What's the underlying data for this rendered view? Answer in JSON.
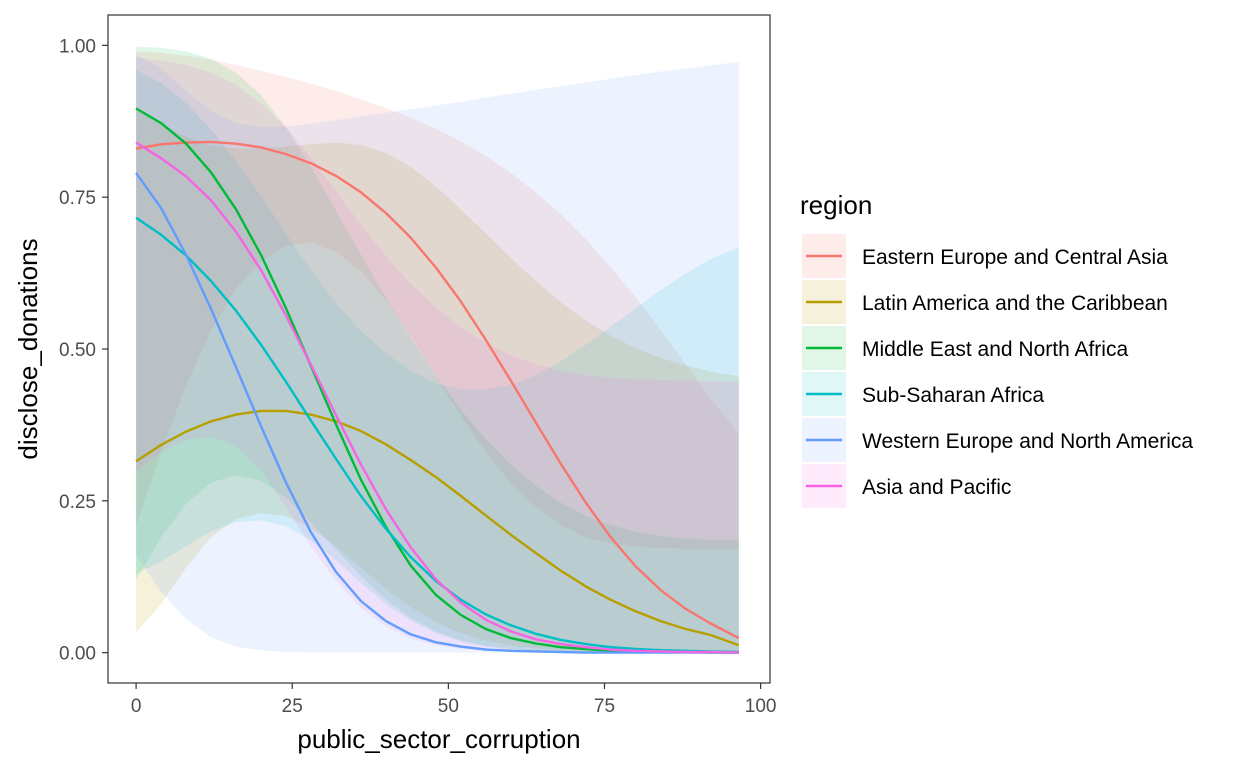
{
  "chart_data": {
    "type": "line",
    "title": "",
    "xlabel": "public_sector_corruption",
    "ylabel": "disclose_donations",
    "xlim": [
      -4.5,
      101.5
    ],
    "ylim": [
      -0.05,
      1.05
    ],
    "x_ticks": [
      0,
      25,
      50,
      75,
      100
    ],
    "x_tick_labels": [
      "0",
      "25",
      "50",
      "75",
      "100"
    ],
    "y_ticks": [
      0,
      0.25,
      0.5,
      0.75,
      1
    ],
    "y_tick_labels": [
      "0.00",
      "0.25",
      "0.50",
      "0.75",
      "1.00"
    ],
    "grid": false,
    "legend": {
      "title": "region",
      "position": "right"
    },
    "x": [
      0,
      4,
      8,
      12,
      16,
      20,
      24,
      28,
      32,
      36,
      40,
      44,
      48,
      52,
      56,
      60,
      64,
      68,
      72,
      76,
      80,
      84,
      88,
      92,
      96.5
    ],
    "series": [
      {
        "name": "Eastern Europe and Central Asia",
        "color": "#F8766D",
        "fill_opacity": 0.14,
        "values": [
          0.83,
          0.837,
          0.84,
          0.841,
          0.838,
          0.832,
          0.821,
          0.806,
          0.785,
          0.758,
          0.724,
          0.683,
          0.634,
          0.578,
          0.515,
          0.448,
          0.379,
          0.311,
          0.247,
          0.19,
          0.142,
          0.103,
          0.072,
          0.048,
          0.024
        ],
        "upper": [
          0.99,
          0.988,
          0.983,
          0.976,
          0.968,
          0.958,
          0.948,
          0.937,
          0.925,
          0.911,
          0.897,
          0.881,
          0.863,
          0.842,
          0.818,
          0.79,
          0.758,
          0.722,
          0.681,
          0.635,
          0.585,
          0.531,
          0.475,
          0.418,
          0.36
        ],
        "lower": [
          0.21,
          0.33,
          0.44,
          0.53,
          0.6,
          0.645,
          0.67,
          0.675,
          0.66,
          0.628,
          0.58,
          0.521,
          0.455,
          0.39,
          0.33,
          0.28,
          0.24,
          0.21,
          0.19,
          0.18,
          0.175,
          0.172,
          0.171,
          0.17,
          0.17
        ]
      },
      {
        "name": "Latin America and the Caribbean",
        "color": "#B79F00",
        "fill_opacity": 0.14,
        "values": [
          0.315,
          0.342,
          0.364,
          0.381,
          0.392,
          0.398,
          0.398,
          0.392,
          0.381,
          0.365,
          0.343,
          0.317,
          0.289,
          0.258,
          0.226,
          0.194,
          0.164,
          0.135,
          0.109,
          0.087,
          0.068,
          0.052,
          0.039,
          0.029,
          0.012
        ],
        "upper": [
          0.9,
          0.87,
          0.85,
          0.835,
          0.83,
          0.83,
          0.833,
          0.837,
          0.84,
          0.836,
          0.823,
          0.8,
          0.768,
          0.73,
          0.69,
          0.65,
          0.612,
          0.577,
          0.547,
          0.522,
          0.501,
          0.485,
          0.473,
          0.463,
          0.455
        ],
        "lower": [
          0.033,
          0.08,
          0.14,
          0.19,
          0.22,
          0.23,
          0.225,
          0.205,
          0.175,
          0.14,
          0.105,
          0.075,
          0.05,
          0.032,
          0.02,
          0.012,
          0.007,
          0.004,
          0.002,
          0.001,
          0.001,
          0.0,
          0.0,
          0.0,
          0.0
        ]
      },
      {
        "name": "Middle East and North Africa",
        "color": "#00BA38",
        "fill_opacity": 0.12,
        "values": [
          0.896,
          0.872,
          0.838,
          0.791,
          0.73,
          0.655,
          0.567,
          0.472,
          0.376,
          0.285,
          0.207,
          0.143,
          0.095,
          0.062,
          0.039,
          0.024,
          0.015,
          0.009,
          0.006,
          0.003,
          0.002,
          0.001,
          0.001,
          0.0,
          0.0
        ],
        "upper": [
          0.998,
          0.996,
          0.99,
          0.978,
          0.955,
          0.918,
          0.865,
          0.8,
          0.728,
          0.656,
          0.585,
          0.518,
          0.456,
          0.4,
          0.352,
          0.31,
          0.275,
          0.247,
          0.225,
          0.21,
          0.199,
          0.192,
          0.188,
          0.186,
          0.185
        ],
        "lower": [
          0.12,
          0.19,
          0.245,
          0.28,
          0.292,
          0.283,
          0.255,
          0.215,
          0.17,
          0.126,
          0.087,
          0.057,
          0.035,
          0.02,
          0.011,
          0.006,
          0.003,
          0.001,
          0.001,
          0.0,
          0.0,
          0.0,
          0.0,
          0.0,
          0.0
        ]
      },
      {
        "name": "Sub-Saharan Africa",
        "color": "#00BFC4",
        "fill_opacity": 0.12,
        "values": [
          0.716,
          0.688,
          0.654,
          0.612,
          0.563,
          0.507,
          0.446,
          0.382,
          0.319,
          0.258,
          0.204,
          0.157,
          0.118,
          0.087,
          0.063,
          0.045,
          0.031,
          0.021,
          0.014,
          0.009,
          0.006,
          0.004,
          0.003,
          0.002,
          0.001
        ],
        "upper": [
          0.96,
          0.938,
          0.905,
          0.862,
          0.81,
          0.752,
          0.69,
          0.63,
          0.575,
          0.53,
          0.493,
          0.464,
          0.444,
          0.434,
          0.433,
          0.441,
          0.457,
          0.48,
          0.507,
          0.537,
          0.567,
          0.597,
          0.624,
          0.648,
          0.668
        ],
        "lower": [
          0.13,
          0.15,
          0.175,
          0.2,
          0.215,
          0.218,
          0.208,
          0.185,
          0.152,
          0.115,
          0.08,
          0.052,
          0.032,
          0.018,
          0.01,
          0.005,
          0.002,
          0.001,
          0.0,
          0.0,
          0.0,
          0.0,
          0.0,
          0.0,
          0.0
        ]
      },
      {
        "name": "Western Europe and North America",
        "color": "#619CFF",
        "fill_opacity": 0.12,
        "values": [
          0.79,
          0.732,
          0.655,
          0.566,
          0.47,
          0.373,
          0.28,
          0.198,
          0.133,
          0.085,
          0.052,
          0.03,
          0.017,
          0.01,
          0.005,
          0.003,
          0.002,
          0.001,
          0.0,
          0.0,
          0.0,
          0.0,
          0.0,
          0.0,
          0.0
        ],
        "upper": [
          0.985,
          0.962,
          0.925,
          0.892,
          0.872,
          0.865,
          0.866,
          0.871,
          0.877,
          0.883,
          0.889,
          0.895,
          0.901,
          0.907,
          0.914,
          0.92,
          0.927,
          0.933,
          0.939,
          0.945,
          0.951,
          0.957,
          0.962,
          0.967,
          0.973
        ],
        "lower": [
          0.16,
          0.1,
          0.055,
          0.025,
          0.01,
          0.004,
          0.001,
          0.0,
          0.0,
          0.0,
          0.0,
          0.0,
          0.0,
          0.0,
          0.0,
          0.0,
          0.0,
          0.0,
          0.0,
          0.0,
          0.0,
          0.0,
          0.0,
          0.0,
          0.0
        ]
      },
      {
        "name": "Asia and Pacific",
        "color": "#F564E3",
        "fill_opacity": 0.12,
        "values": [
          0.84,
          0.814,
          0.784,
          0.745,
          0.693,
          0.63,
          0.555,
          0.474,
          0.391,
          0.31,
          0.236,
          0.173,
          0.121,
          0.082,
          0.054,
          0.035,
          0.022,
          0.014,
          0.009,
          0.005,
          0.003,
          0.002,
          0.001,
          0.001,
          0.0
        ],
        "upper": [
          0.98,
          0.975,
          0.968,
          0.955,
          0.935,
          0.905,
          0.865,
          0.815,
          0.76,
          0.705,
          0.653,
          0.607,
          0.568,
          0.536,
          0.51,
          0.49,
          0.475,
          0.464,
          0.457,
          0.452,
          0.45,
          0.449,
          0.448,
          0.447,
          0.446
        ],
        "lower": [
          0.3,
          0.33,
          0.35,
          0.355,
          0.34,
          0.3,
          0.24,
          0.175,
          0.118,
          0.074,
          0.043,
          0.023,
          0.012,
          0.006,
          0.003,
          0.001,
          0.001,
          0.0,
          0.0,
          0.0,
          0.0,
          0.0,
          0.0,
          0.0,
          0.0
        ]
      }
    ]
  }
}
